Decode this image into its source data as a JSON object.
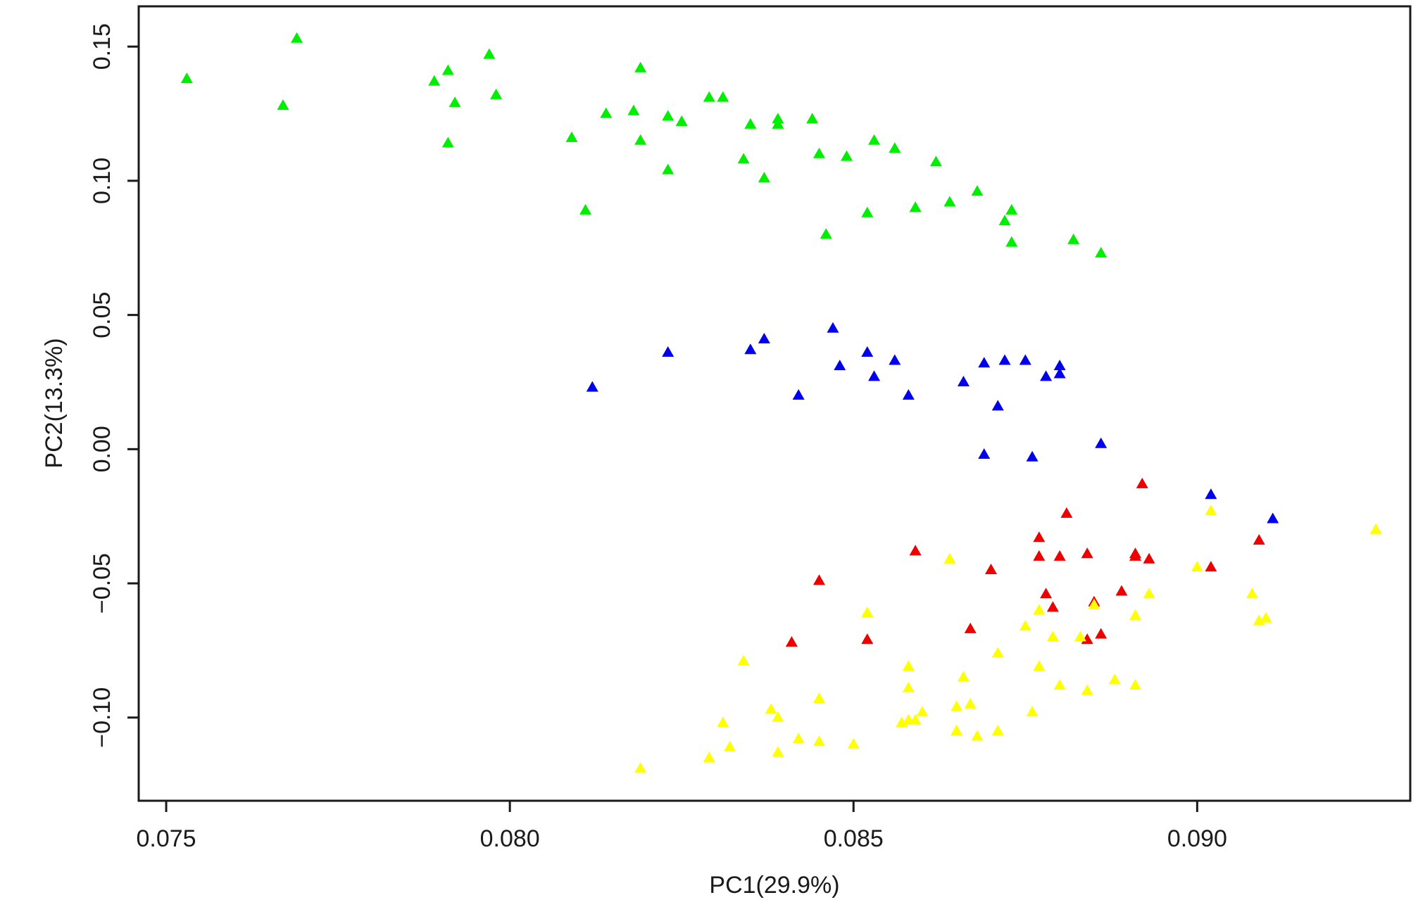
{
  "chart_data": {
    "type": "scatter",
    "xlabel": "PC1(29.9%)",
    "ylabel": "PC2(13.3%)",
    "xlim": [
      0.0746,
      0.0931
    ],
    "ylim": [
      -0.131,
      0.165
    ],
    "xticks": [
      {
        "value": 0.075,
        "label": "0.075"
      },
      {
        "value": 0.08,
        "label": "0.080"
      },
      {
        "value": 0.085,
        "label": "0.085"
      },
      {
        "value": 0.09,
        "label": "0.090"
      }
    ],
    "yticks": [
      {
        "value": 0.15,
        "label": "0.15"
      },
      {
        "value": 0.1,
        "label": "0.10"
      },
      {
        "value": 0.05,
        "label": "0.05"
      },
      {
        "value": 0.0,
        "label": "0.00"
      },
      {
        "value": -0.05,
        "label": "−0.05"
      },
      {
        "value": -0.1,
        "label": "−0.10"
      }
    ],
    "grid": false,
    "legend": "none",
    "marker": "triangle",
    "series": [
      {
        "color": "#00ee00",
        "points": [
          [
            0.0753,
            0.138
          ],
          [
            0.0767,
            0.128
          ],
          [
            0.0769,
            0.153
          ],
          [
            0.0789,
            0.137
          ],
          [
            0.0791,
            0.141
          ],
          [
            0.0792,
            0.129
          ],
          [
            0.0791,
            0.114
          ],
          [
            0.0797,
            0.147
          ],
          [
            0.0798,
            0.132
          ],
          [
            0.0809,
            0.116
          ],
          [
            0.0811,
            0.089
          ],
          [
            0.0814,
            0.125
          ],
          [
            0.0818,
            0.126
          ],
          [
            0.0819,
            0.142
          ],
          [
            0.0819,
            0.115
          ],
          [
            0.0823,
            0.124
          ],
          [
            0.0825,
            0.122
          ],
          [
            0.0823,
            0.104
          ],
          [
            0.0829,
            0.131
          ],
          [
            0.0831,
            0.131
          ],
          [
            0.0834,
            0.108
          ],
          [
            0.0835,
            0.121
          ],
          [
            0.0837,
            0.101
          ],
          [
            0.0839,
            0.123
          ],
          [
            0.0839,
            0.121
          ],
          [
            0.0844,
            0.123
          ],
          [
            0.0845,
            0.11
          ],
          [
            0.0846,
            0.08
          ],
          [
            0.0849,
            0.109
          ],
          [
            0.0852,
            0.088
          ],
          [
            0.0853,
            0.115
          ],
          [
            0.0856,
            0.112
          ],
          [
            0.0859,
            0.09
          ],
          [
            0.0862,
            0.107
          ],
          [
            0.0864,
            0.092
          ],
          [
            0.0868,
            0.096
          ],
          [
            0.0872,
            0.085
          ],
          [
            0.0873,
            0.089
          ],
          [
            0.0873,
            0.077
          ],
          [
            0.0882,
            0.078
          ],
          [
            0.0886,
            0.073
          ]
        ]
      },
      {
        "color": "#0000ee",
        "points": [
          [
            0.0812,
            0.023
          ],
          [
            0.0823,
            0.036
          ],
          [
            0.0835,
            0.037
          ],
          [
            0.0837,
            0.041
          ],
          [
            0.0842,
            0.02
          ],
          [
            0.0847,
            0.045
          ],
          [
            0.0848,
            0.031
          ],
          [
            0.0852,
            0.036
          ],
          [
            0.0853,
            0.027
          ],
          [
            0.0856,
            0.033
          ],
          [
            0.0858,
            0.02
          ],
          [
            0.0866,
            0.025
          ],
          [
            0.0869,
            0.032
          ],
          [
            0.0869,
            -0.002
          ],
          [
            0.0871,
            0.016
          ],
          [
            0.0872,
            0.033
          ],
          [
            0.0875,
            0.033
          ],
          [
            0.0876,
            -0.003
          ],
          [
            0.0878,
            0.027
          ],
          [
            0.088,
            0.031
          ],
          [
            0.088,
            0.028
          ],
          [
            0.0886,
            0.002
          ],
          [
            0.0902,
            -0.017
          ],
          [
            0.0911,
            -0.026
          ]
        ]
      },
      {
        "color": "#ee0000",
        "points": [
          [
            0.0841,
            -0.072
          ],
          [
            0.0845,
            -0.049
          ],
          [
            0.0852,
            -0.071
          ],
          [
            0.0859,
            -0.038
          ],
          [
            0.0867,
            -0.067
          ],
          [
            0.087,
            -0.045
          ],
          [
            0.0877,
            -0.033
          ],
          [
            0.0877,
            -0.04
          ],
          [
            0.0878,
            -0.054
          ],
          [
            0.0879,
            -0.059
          ],
          [
            0.088,
            -0.04
          ],
          [
            0.0881,
            -0.024
          ],
          [
            0.0884,
            -0.039
          ],
          [
            0.0884,
            -0.071
          ],
          [
            0.0885,
            -0.057
          ],
          [
            0.0886,
            -0.069
          ],
          [
            0.0889,
            -0.053
          ],
          [
            0.0891,
            -0.039
          ],
          [
            0.0891,
            -0.04
          ],
          [
            0.0892,
            -0.013
          ],
          [
            0.0893,
            -0.041
          ],
          [
            0.0902,
            -0.044
          ],
          [
            0.0909,
            -0.034
          ]
        ]
      },
      {
        "color": "#ffff00",
        "points": [
          [
            0.0819,
            -0.119
          ],
          [
            0.0829,
            -0.115
          ],
          [
            0.0831,
            -0.102
          ],
          [
            0.0832,
            -0.111
          ],
          [
            0.0834,
            -0.079
          ],
          [
            0.0838,
            -0.097
          ],
          [
            0.0839,
            -0.1
          ],
          [
            0.0839,
            -0.113
          ],
          [
            0.0842,
            -0.108
          ],
          [
            0.0845,
            -0.109
          ],
          [
            0.0845,
            -0.093
          ],
          [
            0.085,
            -0.11
          ],
          [
            0.0852,
            -0.061
          ],
          [
            0.0857,
            -0.102
          ],
          [
            0.0858,
            -0.101
          ],
          [
            0.0858,
            -0.081
          ],
          [
            0.0858,
            -0.089
          ],
          [
            0.0859,
            -0.101
          ],
          [
            0.086,
            -0.098
          ],
          [
            0.0864,
            -0.041
          ],
          [
            0.0865,
            -0.096
          ],
          [
            0.0865,
            -0.105
          ],
          [
            0.0866,
            -0.085
          ],
          [
            0.0867,
            -0.095
          ],
          [
            0.0868,
            -0.107
          ],
          [
            0.0871,
            -0.105
          ],
          [
            0.0871,
            -0.076
          ],
          [
            0.0875,
            -0.066
          ],
          [
            0.0876,
            -0.098
          ],
          [
            0.0877,
            -0.081
          ],
          [
            0.0877,
            -0.06
          ],
          [
            0.0879,
            -0.07
          ],
          [
            0.088,
            -0.088
          ],
          [
            0.0883,
            -0.07
          ],
          [
            0.0884,
            -0.09
          ],
          [
            0.0885,
            -0.058
          ],
          [
            0.0888,
            -0.086
          ],
          [
            0.0891,
            -0.088
          ],
          [
            0.0891,
            -0.062
          ],
          [
            0.0893,
            -0.054
          ],
          [
            0.09,
            -0.044
          ],
          [
            0.0902,
            -0.023
          ],
          [
            0.0908,
            -0.054
          ],
          [
            0.0909,
            -0.064
          ],
          [
            0.091,
            -0.063
          ],
          [
            0.0926,
            -0.03
          ]
        ]
      }
    ]
  }
}
